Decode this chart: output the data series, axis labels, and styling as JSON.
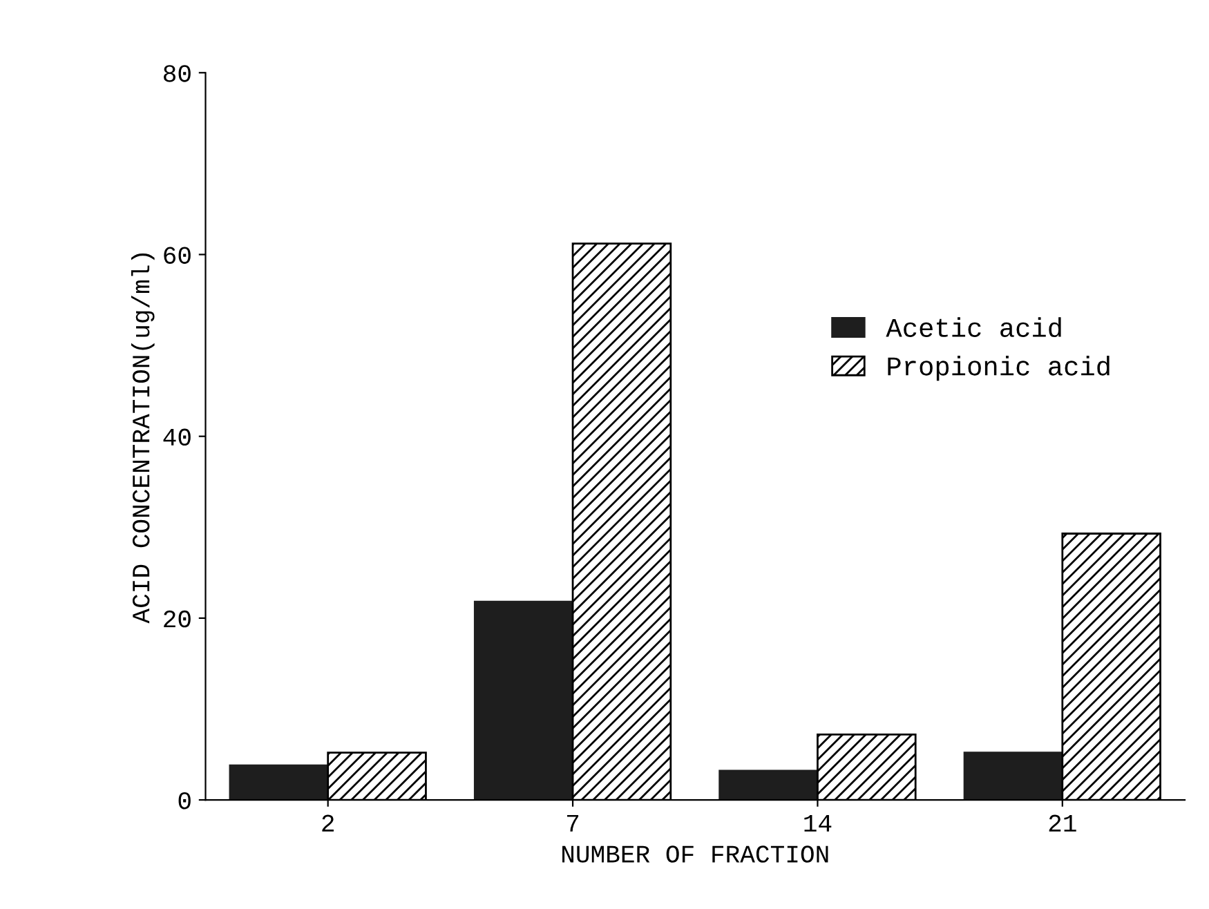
{
  "chart_data": {
    "type": "bar",
    "xlabel": "NUMBER OF FRACTION",
    "ylabel": "ACID CONCENTRATION(ug/ml)",
    "categories": [
      "2",
      "7",
      "14",
      "21"
    ],
    "series": [
      {
        "name": "Acetic acid",
        "color": "#1e1e1e",
        "values": [
          3.8,
          21.8,
          3.2,
          5.2
        ]
      },
      {
        "name": "Propionic acid",
        "color": "#000000",
        "values": [
          5.2,
          61.2,
          7.2,
          29.3
        ]
      }
    ],
    "ylim": [
      0,
      80
    ],
    "yticks": [
      0,
      20,
      40,
      60,
      80
    ],
    "grid": false,
    "legend": "right"
  }
}
